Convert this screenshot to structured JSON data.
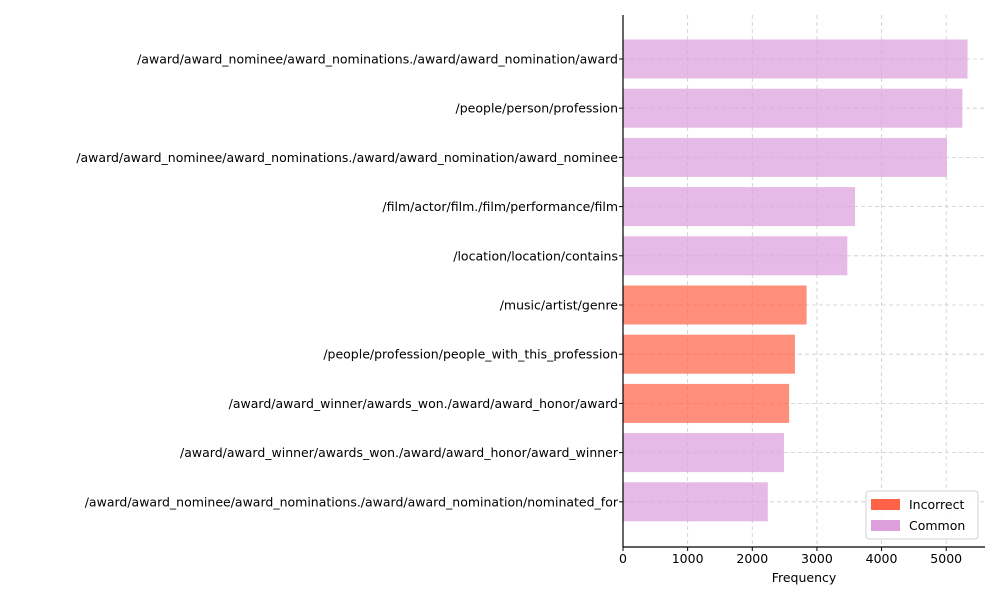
{
  "chart_data": {
    "type": "bar",
    "orientation": "horizontal",
    "xlabel": "Frequency",
    "xlim": [
      0,
      5600
    ],
    "xticks": [
      0,
      1000,
      2000,
      3000,
      4000,
      5000
    ],
    "grid": true,
    "legend_position": "bottom-right",
    "series": [
      {
        "name": "Incorrect",
        "color": "#ff6347"
      },
      {
        "name": "Common",
        "color": "#dda0dd"
      }
    ],
    "categories": [
      "/award/award_nominee/award_nominations./award/award_nomination/award",
      "/people/person/profession",
      "/award/award_nominee/award_nominations./award/award_nomination/award_nominee",
      "/film/actor/film./film/performance/film",
      "/location/location/contains",
      "/music/artist/genre",
      "/people/profession/people_with_this_profession",
      "/award/award_winner/awards_won./award/award_honor/award",
      "/award/award_winner/awards_won./award/award_honor/award_winner",
      "/award/award_nominee/award_nominations./award/award_nomination/nominated_for"
    ],
    "values": [
      5330,
      5250,
      5010,
      3590,
      3470,
      2840,
      2660,
      2570,
      2490,
      2240
    ],
    "groups": [
      "Common",
      "Common",
      "Common",
      "Common",
      "Common",
      "Incorrect",
      "Incorrect",
      "Incorrect",
      "Common",
      "Common"
    ]
  }
}
